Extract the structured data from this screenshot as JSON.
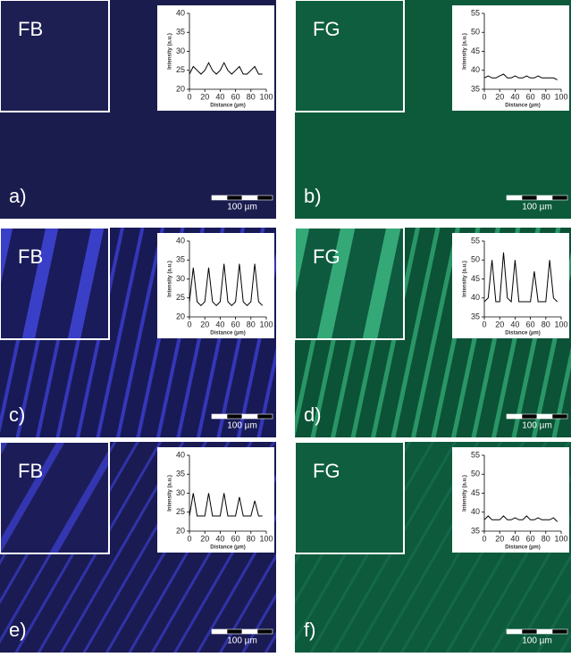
{
  "panels": [
    {
      "dye": "FB",
      "letter": "a)",
      "scale_bar": "100 µm",
      "chart": {
        "type": "line",
        "xlabel": "Distance (µm)",
        "ylabel": "Intensity (a.u.)",
        "color": "#000000",
        "x": [
          0,
          5,
          10,
          15,
          20,
          25,
          30,
          35,
          40,
          45,
          50,
          55,
          60,
          65,
          70,
          75,
          80,
          85,
          90,
          95
        ],
        "values": [
          24,
          26,
          25,
          24,
          25,
          27,
          25,
          24,
          25,
          27,
          25,
          24,
          25,
          26,
          24,
          24,
          25,
          26,
          24,
          24
        ],
        "xlim": [
          0,
          100
        ],
        "ylim": [
          20,
          40
        ],
        "xticks": [
          0,
          20,
          40,
          60,
          80,
          100
        ],
        "yticks": [
          20,
          25,
          30,
          35,
          40
        ]
      }
    },
    {
      "dye": "FG",
      "letter": "b)",
      "scale_bar": "100 µm",
      "chart": {
        "type": "line",
        "xlabel": "Distance (µm)",
        "ylabel": "Intensity (a.u.)",
        "color": "#000000",
        "x": [
          0,
          5,
          10,
          15,
          20,
          25,
          30,
          35,
          40,
          45,
          50,
          55,
          60,
          65,
          70,
          75,
          80,
          85,
          90,
          95
        ],
        "values": [
          38,
          38.5,
          38,
          38,
          38.5,
          39,
          38,
          38,
          38.5,
          38,
          38,
          38.5,
          38,
          38,
          38.5,
          38,
          38,
          38,
          38,
          37.5
        ],
        "xlim": [
          0,
          100
        ],
        "ylim": [
          35,
          55
        ],
        "xticks": [
          0,
          20,
          40,
          60,
          80,
          100
        ],
        "yticks": [
          35,
          40,
          45,
          50,
          55
        ]
      }
    },
    {
      "dye": "FB",
      "letter": "c)",
      "scale_bar": "100 µm",
      "chart": {
        "type": "line",
        "xlabel": "Distance (µm)",
        "ylabel": "Intensity (a.u.)",
        "color": "#000000",
        "x": [
          0,
          5,
          10,
          15,
          20,
          25,
          30,
          35,
          40,
          45,
          50,
          55,
          60,
          65,
          70,
          75,
          80,
          85,
          90,
          95
        ],
        "values": [
          24,
          33,
          24,
          23,
          24,
          33,
          24,
          23,
          24,
          34,
          24,
          23,
          24,
          34,
          24,
          23,
          24,
          34,
          24,
          23
        ],
        "xlim": [
          0,
          100
        ],
        "ylim": [
          20,
          40
        ],
        "xticks": [
          0,
          20,
          40,
          60,
          80,
          100
        ],
        "yticks": [
          20,
          25,
          30,
          35,
          40
        ]
      }
    },
    {
      "dye": "FG",
      "letter": "d)",
      "scale_bar": "100 µm",
      "chart": {
        "type": "line",
        "xlabel": "Distance (µm)",
        "ylabel": "Intensity (a.u.)",
        "color": "#000000",
        "x": [
          0,
          5,
          10,
          15,
          20,
          25,
          30,
          35,
          40,
          45,
          50,
          55,
          60,
          65,
          70,
          75,
          80,
          85,
          90,
          95
        ],
        "values": [
          39,
          40,
          50,
          39,
          39,
          52,
          40,
          39,
          50,
          39,
          39,
          39,
          39,
          47,
          39,
          39,
          39,
          50,
          40,
          39
        ],
        "xlim": [
          0,
          100
        ],
        "ylim": [
          35,
          55
        ],
        "xticks": [
          0,
          20,
          40,
          60,
          80,
          100
        ],
        "yticks": [
          35,
          40,
          45,
          50,
          55
        ]
      }
    },
    {
      "dye": "FB",
      "letter": "e)",
      "scale_bar": "100 µm",
      "chart": {
        "type": "line",
        "xlabel": "Distance (µm)",
        "ylabel": "Intensity (a.u.)",
        "color": "#000000",
        "x": [
          0,
          5,
          10,
          15,
          20,
          25,
          30,
          35,
          40,
          45,
          50,
          55,
          60,
          65,
          70,
          75,
          80,
          85,
          90,
          95
        ],
        "values": [
          24,
          30,
          24,
          24,
          24,
          30,
          24,
          24,
          24,
          30,
          24,
          24,
          24,
          29,
          24,
          24,
          24,
          28,
          24,
          24
        ],
        "xlim": [
          0,
          100
        ],
        "ylim": [
          20,
          40
        ],
        "xticks": [
          0,
          20,
          40,
          60,
          80,
          100
        ],
        "yticks": [
          20,
          25,
          30,
          35,
          40
        ]
      }
    },
    {
      "dye": "FG",
      "letter": "f)",
      "scale_bar": "100 µm",
      "chart": {
        "type": "line",
        "xlabel": "Distance (µm)",
        "ylabel": "Intensity (a.u.)",
        "color": "#000000",
        "x": [
          0,
          5,
          10,
          15,
          20,
          25,
          30,
          35,
          40,
          45,
          50,
          55,
          60,
          65,
          70,
          75,
          80,
          85,
          90,
          95
        ],
        "values": [
          38,
          39,
          38,
          38,
          38,
          39,
          38,
          38,
          38.5,
          38,
          38,
          39,
          38,
          38,
          38.5,
          38,
          38,
          38,
          38.5,
          37.5
        ],
        "xlim": [
          0,
          100
        ],
        "ylim": [
          35,
          55
        ],
        "xticks": [
          0,
          20,
          40,
          60,
          80,
          100
        ],
        "yticks": [
          35,
          40,
          45,
          50,
          55
        ]
      }
    }
  ]
}
